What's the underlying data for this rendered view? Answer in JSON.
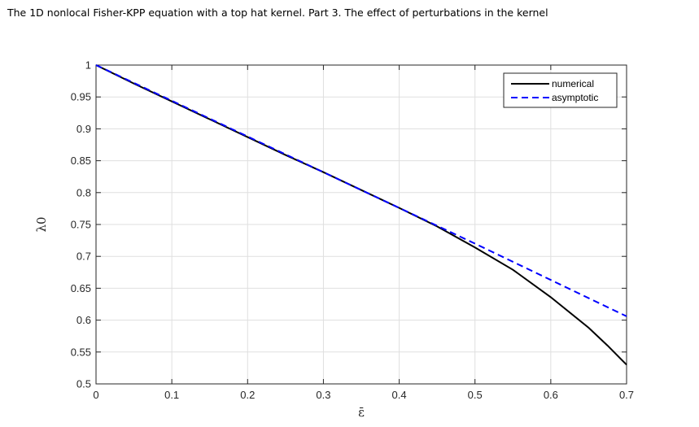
{
  "header": {
    "title": "The 1D nonlocal Fisher-KPP equation with a top hat kernel. Part 3. The effect of perturbations in the kernel"
  },
  "chart_data": {
    "type": "line",
    "title": "",
    "xlabel": "ε̄",
    "ylabel": "λ0",
    "xlim": [
      0,
      0.7
    ],
    "ylim": [
      0.5,
      1
    ],
    "xticks": [
      0,
      0.1,
      0.2,
      0.3,
      0.4,
      0.5,
      0.6,
      0.7
    ],
    "xtick_labels": [
      "0",
      "0.1",
      "0.2",
      "0.3",
      "0.4",
      "0.5",
      "0.6",
      "0.7"
    ],
    "yticks": [
      0.5,
      0.55,
      0.6,
      0.65,
      0.7,
      0.75,
      0.8,
      0.85,
      0.9,
      0.95,
      1
    ],
    "ytick_labels": [
      "0.5",
      "0.55",
      "0.6",
      "0.65",
      "0.7",
      "0.75",
      "0.8",
      "0.85",
      "0.9",
      "0.95",
      "1"
    ],
    "grid": true,
    "legend_position": "top-right",
    "series": [
      {
        "name": "numerical",
        "color": "#000000",
        "style": "solid",
        "x": [
          0,
          0.05,
          0.1,
          0.15,
          0.2,
          0.25,
          0.3,
          0.35,
          0.4,
          0.45,
          0.5,
          0.55,
          0.6,
          0.65,
          0.675,
          0.7
        ],
        "y": [
          1.0,
          0.971,
          0.943,
          0.915,
          0.887,
          0.859,
          0.832,
          0.804,
          0.776,
          0.747,
          0.714,
          0.679,
          0.636,
          0.588,
          0.56,
          0.53
        ]
      },
      {
        "name": "asymptotic",
        "color": "#0000ff",
        "style": "dashed",
        "x": [
          0,
          0.1,
          0.2,
          0.3,
          0.4,
          0.5,
          0.6,
          0.7
        ],
        "y": [
          1.0,
          0.944,
          0.888,
          0.832,
          0.776,
          0.72,
          0.663,
          0.606
        ]
      }
    ]
  }
}
